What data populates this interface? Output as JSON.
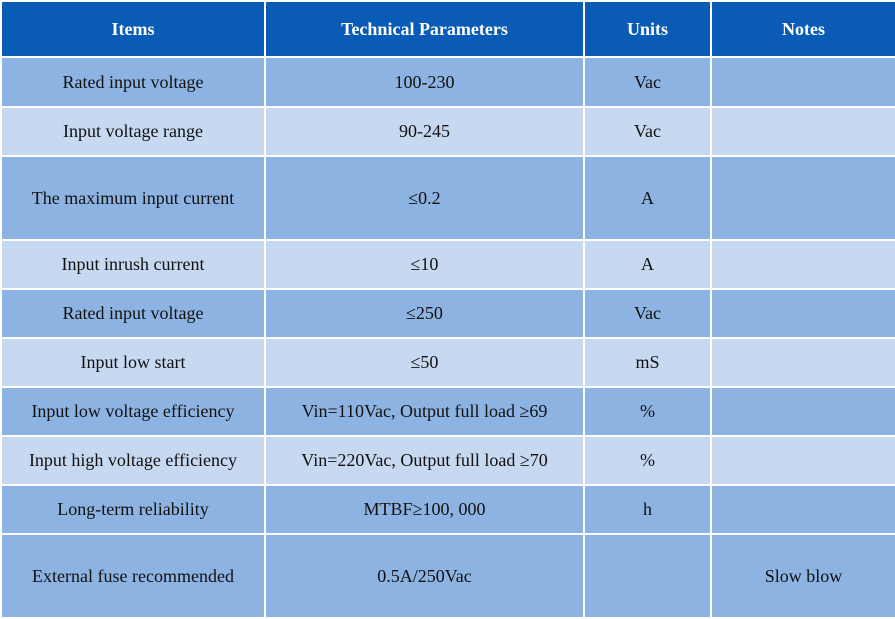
{
  "headers": [
    "Items",
    "Technical Parameters",
    "Units",
    "Notes"
  ],
  "rows": [
    {
      "item": "Rated input voltage",
      "param": "100-230",
      "unit": "Vac",
      "note": ""
    },
    {
      "item": "Input voltage range",
      "param": "90-245",
      "unit": "Vac",
      "note": ""
    },
    {
      "item": "The maximum input current",
      "param": "≤0.2",
      "unit": "A",
      "note": ""
    },
    {
      "item": "Input inrush current",
      "param": "≤10",
      "unit": "A",
      "note": ""
    },
    {
      "item": "Rated input voltage",
      "param": "≤250",
      "unit": "Vac",
      "note": ""
    },
    {
      "item": "Input low start",
      "param": "≤50",
      "unit": "mS",
      "note": ""
    },
    {
      "item": "Input low voltage efficiency",
      "param": "Vin=110Vac, Output full load ≥69",
      "unit": "%",
      "note": ""
    },
    {
      "item": "Input high voltage efficiency",
      "param": "Vin=220Vac, Output full load ≥70",
      "unit": "%",
      "note": ""
    },
    {
      "item": "Long-term reliability",
      "param": "MTBF≥100, 000",
      "unit": "h",
      "note": ""
    },
    {
      "item": "External fuse recommended",
      "param": "0.5A/250Vac",
      "unit": "",
      "note": "Slow blow"
    }
  ],
  "colors": {
    "header": "#0a5bb5",
    "row_dark": "#8db3e2",
    "row_light": "#c6d9f1"
  }
}
